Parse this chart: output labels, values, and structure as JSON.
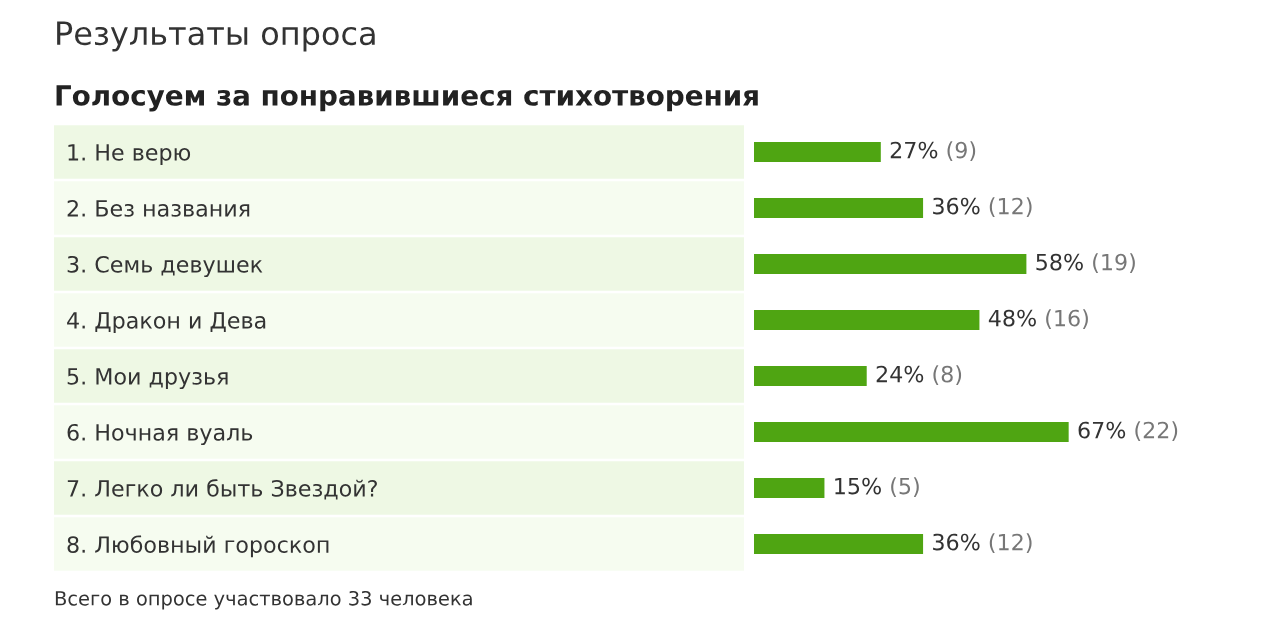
{
  "chart_data": {
    "type": "bar",
    "orientation": "horizontal",
    "title": "Результаты опроса",
    "subtitle": "Голосуем за понравившиеся стихотворения",
    "categories": [
      "1. Не верю",
      "2. Без названия",
      "3. Семь девушек",
      "4. Дракон и Дева",
      "5. Мои друзья",
      "6. Ночная вуаль",
      "7. Легко ли быть Звездой?",
      "8. Любовный гороскоп"
    ],
    "values": [
      27,
      36,
      58,
      48,
      24,
      67,
      15,
      36
    ],
    "value_labels": [
      "27% (9)",
      "36% (12)",
      "58% (19)",
      "48% (16)",
      "24% (8)",
      "67% (22)",
      "15% (5)",
      "36% (12)"
    ],
    "color": "#4fa512",
    "annotations": [
      "Всего в опросе участвовало 33 человека"
    ]
  }
}
